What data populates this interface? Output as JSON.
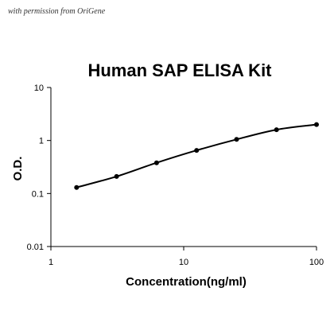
{
  "credit_text": "with permission from OriGene",
  "chart_data": {
    "type": "scatter",
    "title": "Human SAP ELISA Kit",
    "xlabel": "Concentration(ng/ml)",
    "ylabel": "O.D.",
    "x_scale": "log",
    "y_scale": "log",
    "xlim": [
      1,
      100
    ],
    "ylim": [
      0.01,
      10
    ],
    "x_ticks": [
      {
        "value": 1,
        "label": "1"
      },
      {
        "value": 10,
        "label": "10"
      },
      {
        "value": 100,
        "label": "100"
      }
    ],
    "y_ticks": [
      {
        "value": 0.01,
        "label": "0.01"
      },
      {
        "value": 0.1,
        "label": "0.1"
      },
      {
        "value": 1,
        "label": "1"
      },
      {
        "value": 10,
        "label": "10"
      }
    ],
    "grid": false,
    "legend": "none",
    "series": [
      {
        "x": [
          1.56,
          3.125,
          6.25,
          12.5,
          25,
          50,
          100
        ],
        "y": [
          0.13,
          0.21,
          0.38,
          0.65,
          1.05,
          1.6,
          2.0
        ],
        "marker_color": "#000000",
        "line_color": "#000000",
        "fit_curve": true
      }
    ]
  }
}
